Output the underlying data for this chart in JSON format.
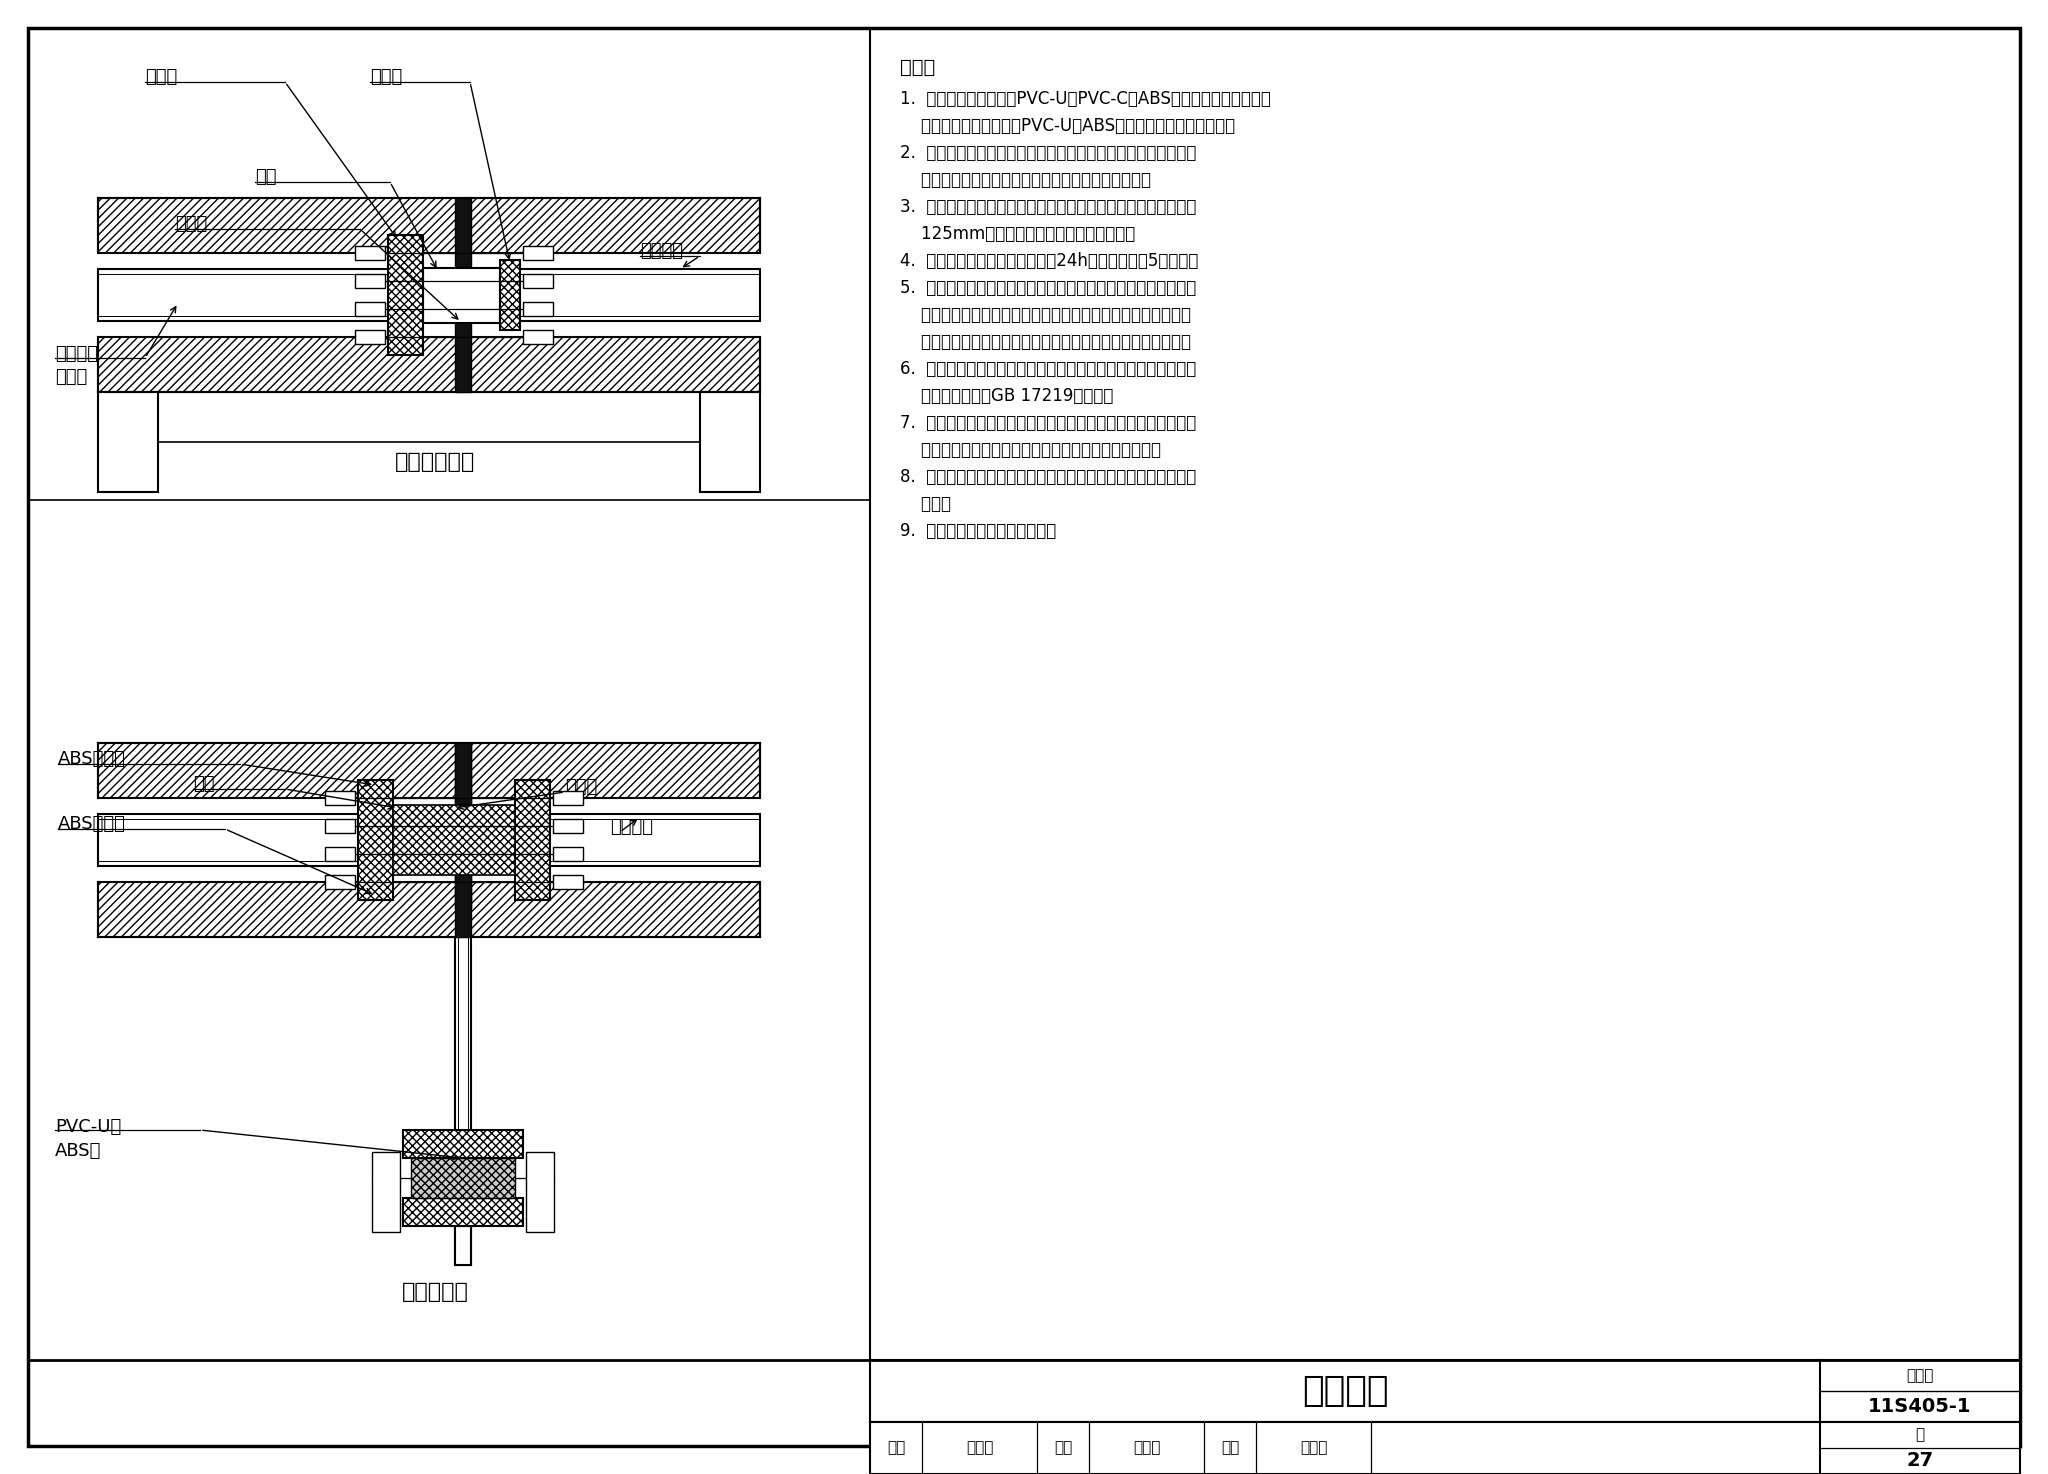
{
  "bg_color": "#ffffff",
  "title_main": "法兰连接",
  "atlas_no": "11S405-1",
  "page_no": "27",
  "diagram1_title": "活套法兰连接",
  "diagram2_title": "呆法兰连接",
  "expl_title": "说明：",
  "expl_lines": [
    "1.  活套法兰连接适用于PVC-U、PVC-C和ABS管材与其他材质给水管",
    "    材连接；呆法兰适用于PVC-U、ABS管材与其他材质管材连接。",
    "2.  将插口外壁擦拭干净，涂抒与管材材质配套的专用胶合剂，再",
    "    将法兰接口的承口内壁擦拭干净，涂抒专用胶合剂。",
    "3.  将插口插入法兰接口承口，并将挤出的胶合剂擦净。管径大于",
    "    125mm的管子插入后宜用木槌槌打密实。",
    "4.  法兰盘与管道粘接完毕，静缮24h后可以进行第5个步骤。",
    "5.  将已连接管道的法兰再与其他管材法兰连接时，需校正两对应",
    "    的连接件，使连接的两片法兰垂直于管道中心线，表面相互平",
    "    行，对准螺孔，并在法兰间加设得片，穿好螺栓、对角拧紧。",
    "6.  法兰间橡胶坤应符合《生活饮用水输配水设备及防护材料卫生",
    "    安全评价规范》GB 17219的要求。",
    "7.  应使用相同规格的螺母，安装方向一致。螺栓应对称紧固。紧",
    "    固好的螺栓应露出螺母之外。螺栓螺帽宜采用镀锌件。",
    "8.  连接管道的长度应精确，当紧固螺栓时，不应使管道产生轴向",
    "    拉力。",
    "9.  法兰连接部位应设置支呐架。"
  ],
  "lbl1_fld": "法兰盘",
  "lbl1_xjd": "橡胶坤",
  "lbl1_zj": "粘接",
  "lbl1_flt": "法兰套",
  "lbl1_gsgc": "给水管材",
  "lbl1_lyxt": "氯乙烯类\n塑料管",
  "lbl2_abs1": "ABS呆法兰",
  "lbl2_zj": "粘接",
  "lbl2_abs2": "ABS呆法兰",
  "lbl2_xjd": "橡胶坤",
  "lbl2_gsgc": "给水管材",
  "lbl2_pvc": "PVC-U管\nABS管",
  "footer_items": [
    "审核",
    "肖鲁书",
    "校对",
    "陈永青",
    "设计",
    "叶雄来"
  ]
}
